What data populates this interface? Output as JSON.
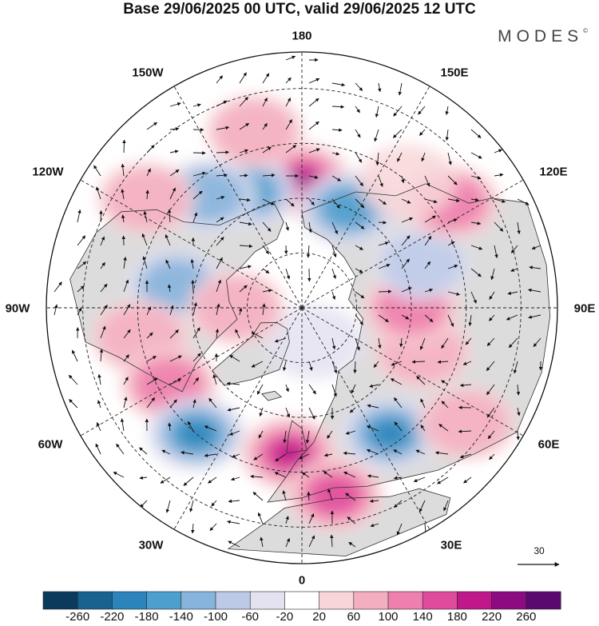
{
  "title": "Base 29/06/2025 00 UTC, valid 29/06/2025 12 UTC",
  "brand": "MODES",
  "brand_mark": "©",
  "longitude_labels": {
    "lon_180": "180",
    "lon_150e": "150E",
    "lon_120e": "120E",
    "lon_90e": "90E",
    "lon_60e": "60E",
    "lon_30e": "30E",
    "lon_0": "0",
    "lon_30w": "30W",
    "lon_60w": "60W",
    "lon_90w": "90W",
    "lon_120w": "120W",
    "lon_150w": "150W"
  },
  "reference_vector": {
    "label": "30"
  },
  "colorbar": {
    "levels": [
      "-260",
      "-220",
      "-180",
      "-140",
      "-100",
      "-60",
      "-20",
      "20",
      "60",
      "100",
      "140",
      "180",
      "220",
      "260"
    ],
    "colors": [
      "#0b3a5c",
      "#17628f",
      "#2b84bb",
      "#4d9fcd",
      "#86b4dc",
      "#bccae8",
      "#e4e2f0",
      "#ffffff",
      "#f8d6d8",
      "#f3aebf",
      "#ee7fae",
      "#e04b9d",
      "#c0188a",
      "#8c0b80",
      "#5a0a6e"
    ]
  },
  "colors": {
    "land_shade": "#dcdcdc",
    "coast": "#333333",
    "grid": "#222222",
    "wind_arrow": "#111111"
  },
  "map_features": {
    "anomalies": [
      {
        "lon": 180,
        "lat": 55,
        "value": 240
      },
      {
        "lon": 155,
        "lat": 60,
        "value": -140
      },
      {
        "lon": -155,
        "lat": 55,
        "value": -160
      },
      {
        "lon": -165,
        "lat": 40,
        "value": 60
      },
      {
        "lon": -140,
        "lat": 50,
        "value": -120
      },
      {
        "lon": -125,
        "lat": 38,
        "value": 60
      },
      {
        "lon": -100,
        "lat": 55,
        "value": -100
      },
      {
        "lon": -80,
        "lat": 45,
        "value": 60
      },
      {
        "lon": -60,
        "lat": 48,
        "value": 100
      },
      {
        "lon": -40,
        "lat": 45,
        "value": -180
      },
      {
        "lon": -5,
        "lat": 50,
        "value": 180
      },
      {
        "lon": 10,
        "lat": 38,
        "value": 140
      },
      {
        "lon": 35,
        "lat": 48,
        "value": -200
      },
      {
        "lon": 55,
        "lat": 35,
        "value": 60
      },
      {
        "lon": 70,
        "lat": 55,
        "value": 60
      },
      {
        "lon": 90,
        "lat": 60,
        "value": 100
      },
      {
        "lon": 110,
        "lat": 55,
        "value": -60
      },
      {
        "lon": 125,
        "lat": 40,
        "value": 100
      },
      {
        "lon": 140,
        "lat": 45,
        "value": 40
      },
      {
        "lon": 20,
        "lat": 80,
        "value": -40
      },
      {
        "lon": -90,
        "lat": 72,
        "value": 60
      }
    ]
  }
}
